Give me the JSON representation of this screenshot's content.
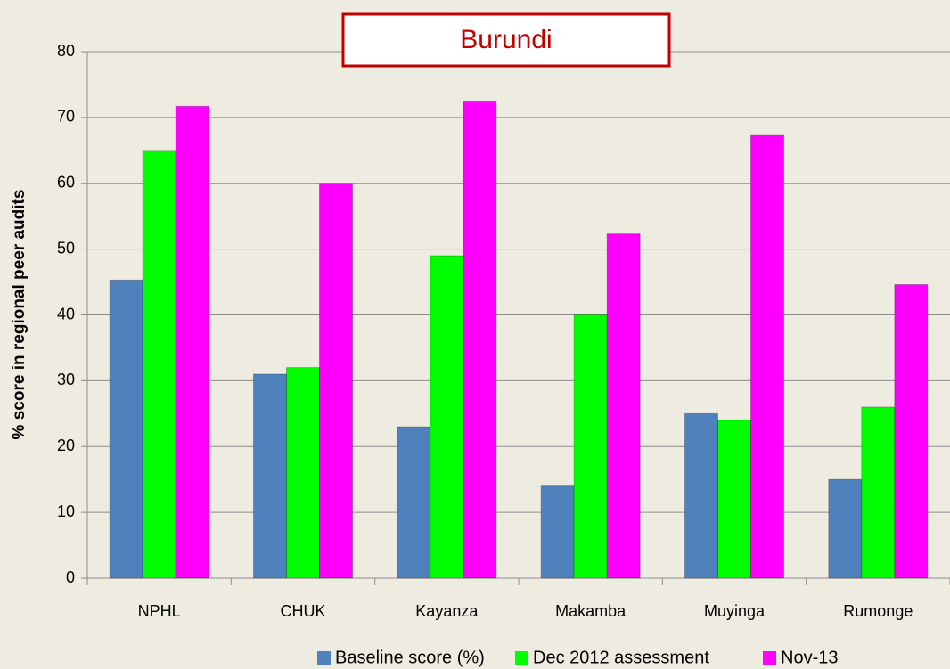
{
  "chart_data": {
    "type": "bar",
    "title": "Burundi",
    "y_label": "% score in regional peer audits",
    "categories": [
      "NPHL",
      "CHUK",
      "Kayanza",
      "Makamba",
      "Muyinga",
      "Rumonge"
    ],
    "series": [
      {
        "name": "Baseline score  (%)",
        "color": "#4f81bd",
        "values": [
          45.3,
          31,
          23,
          14,
          25,
          15
        ]
      },
      {
        "name": "Dec 2012 assessment",
        "color": "#00ff00",
        "values": [
          65,
          32,
          49,
          40,
          24,
          26
        ]
      },
      {
        "name": "Nov-13",
        "color": "#ff00ff",
        "values": [
          71.7,
          60,
          72.5,
          52.3,
          67.4,
          44.6
        ]
      }
    ],
    "ylim": [
      0,
      80
    ],
    "yticks": [
      0,
      10,
      20,
      30,
      40,
      50,
      60,
      70,
      80
    ],
    "grid": true,
    "legend": "bottom"
  }
}
